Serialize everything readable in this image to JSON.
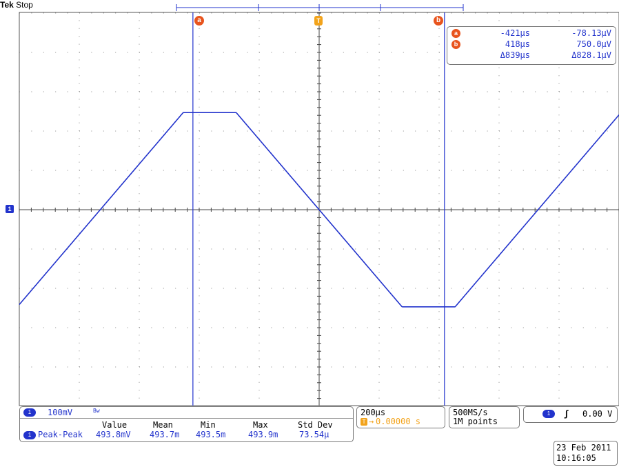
{
  "header": {
    "brand": "Tek",
    "status": "Stop"
  },
  "cursors": {
    "a_label": "a",
    "b_label": "b",
    "trigger_label": "T",
    "channel_marker": "1"
  },
  "cursor_readout": {
    "a": {
      "label": "a",
      "time": "-421µs",
      "value": "-78.13µV"
    },
    "b": {
      "label": "b",
      "time": "418µs",
      "value": "750.0µV"
    },
    "delta": {
      "time": "Δ839µs",
      "value": "Δ828.1µV"
    }
  },
  "channel_box": {
    "channel": "1",
    "scale": "100mV",
    "bw_icon": "bandwidth-limit-icon",
    "bw_glyph": "Bw"
  },
  "measurement": {
    "channel": "1",
    "name": "Peak-Peak",
    "headers": [
      "Value",
      "Mean",
      "Min",
      "Max",
      "Std Dev"
    ],
    "values": [
      "493.8mV",
      "493.7m",
      "493.5m",
      "493.9m",
      "73.54µ"
    ]
  },
  "timebase": {
    "scale": "200µs",
    "trigger_icon": "T",
    "position": "0.00000 s"
  },
  "acquisition": {
    "rate": "500MS/s",
    "record": "1M points"
  },
  "trigger": {
    "channel": "1",
    "slope_icon": "rising-edge-icon",
    "slope_glyph": "ʃ",
    "level": "0.00 V"
  },
  "datetime": {
    "date": "23 Feb 2011",
    "time": "10:16:05"
  },
  "colors": {
    "trace": "#2233cc",
    "cursor": "#e8541e",
    "trigger": "#f2a31b",
    "grid": "#888888"
  },
  "waveform": {
    "shape": "clipped-triangle",
    "period_us": 1460,
    "time_per_div_us": 200,
    "volts_per_div_mV": 100,
    "peak_to_peak_mV": 493.8,
    "clip_level_mV": 247,
    "first_zero_crossing_us": -730
  }
}
